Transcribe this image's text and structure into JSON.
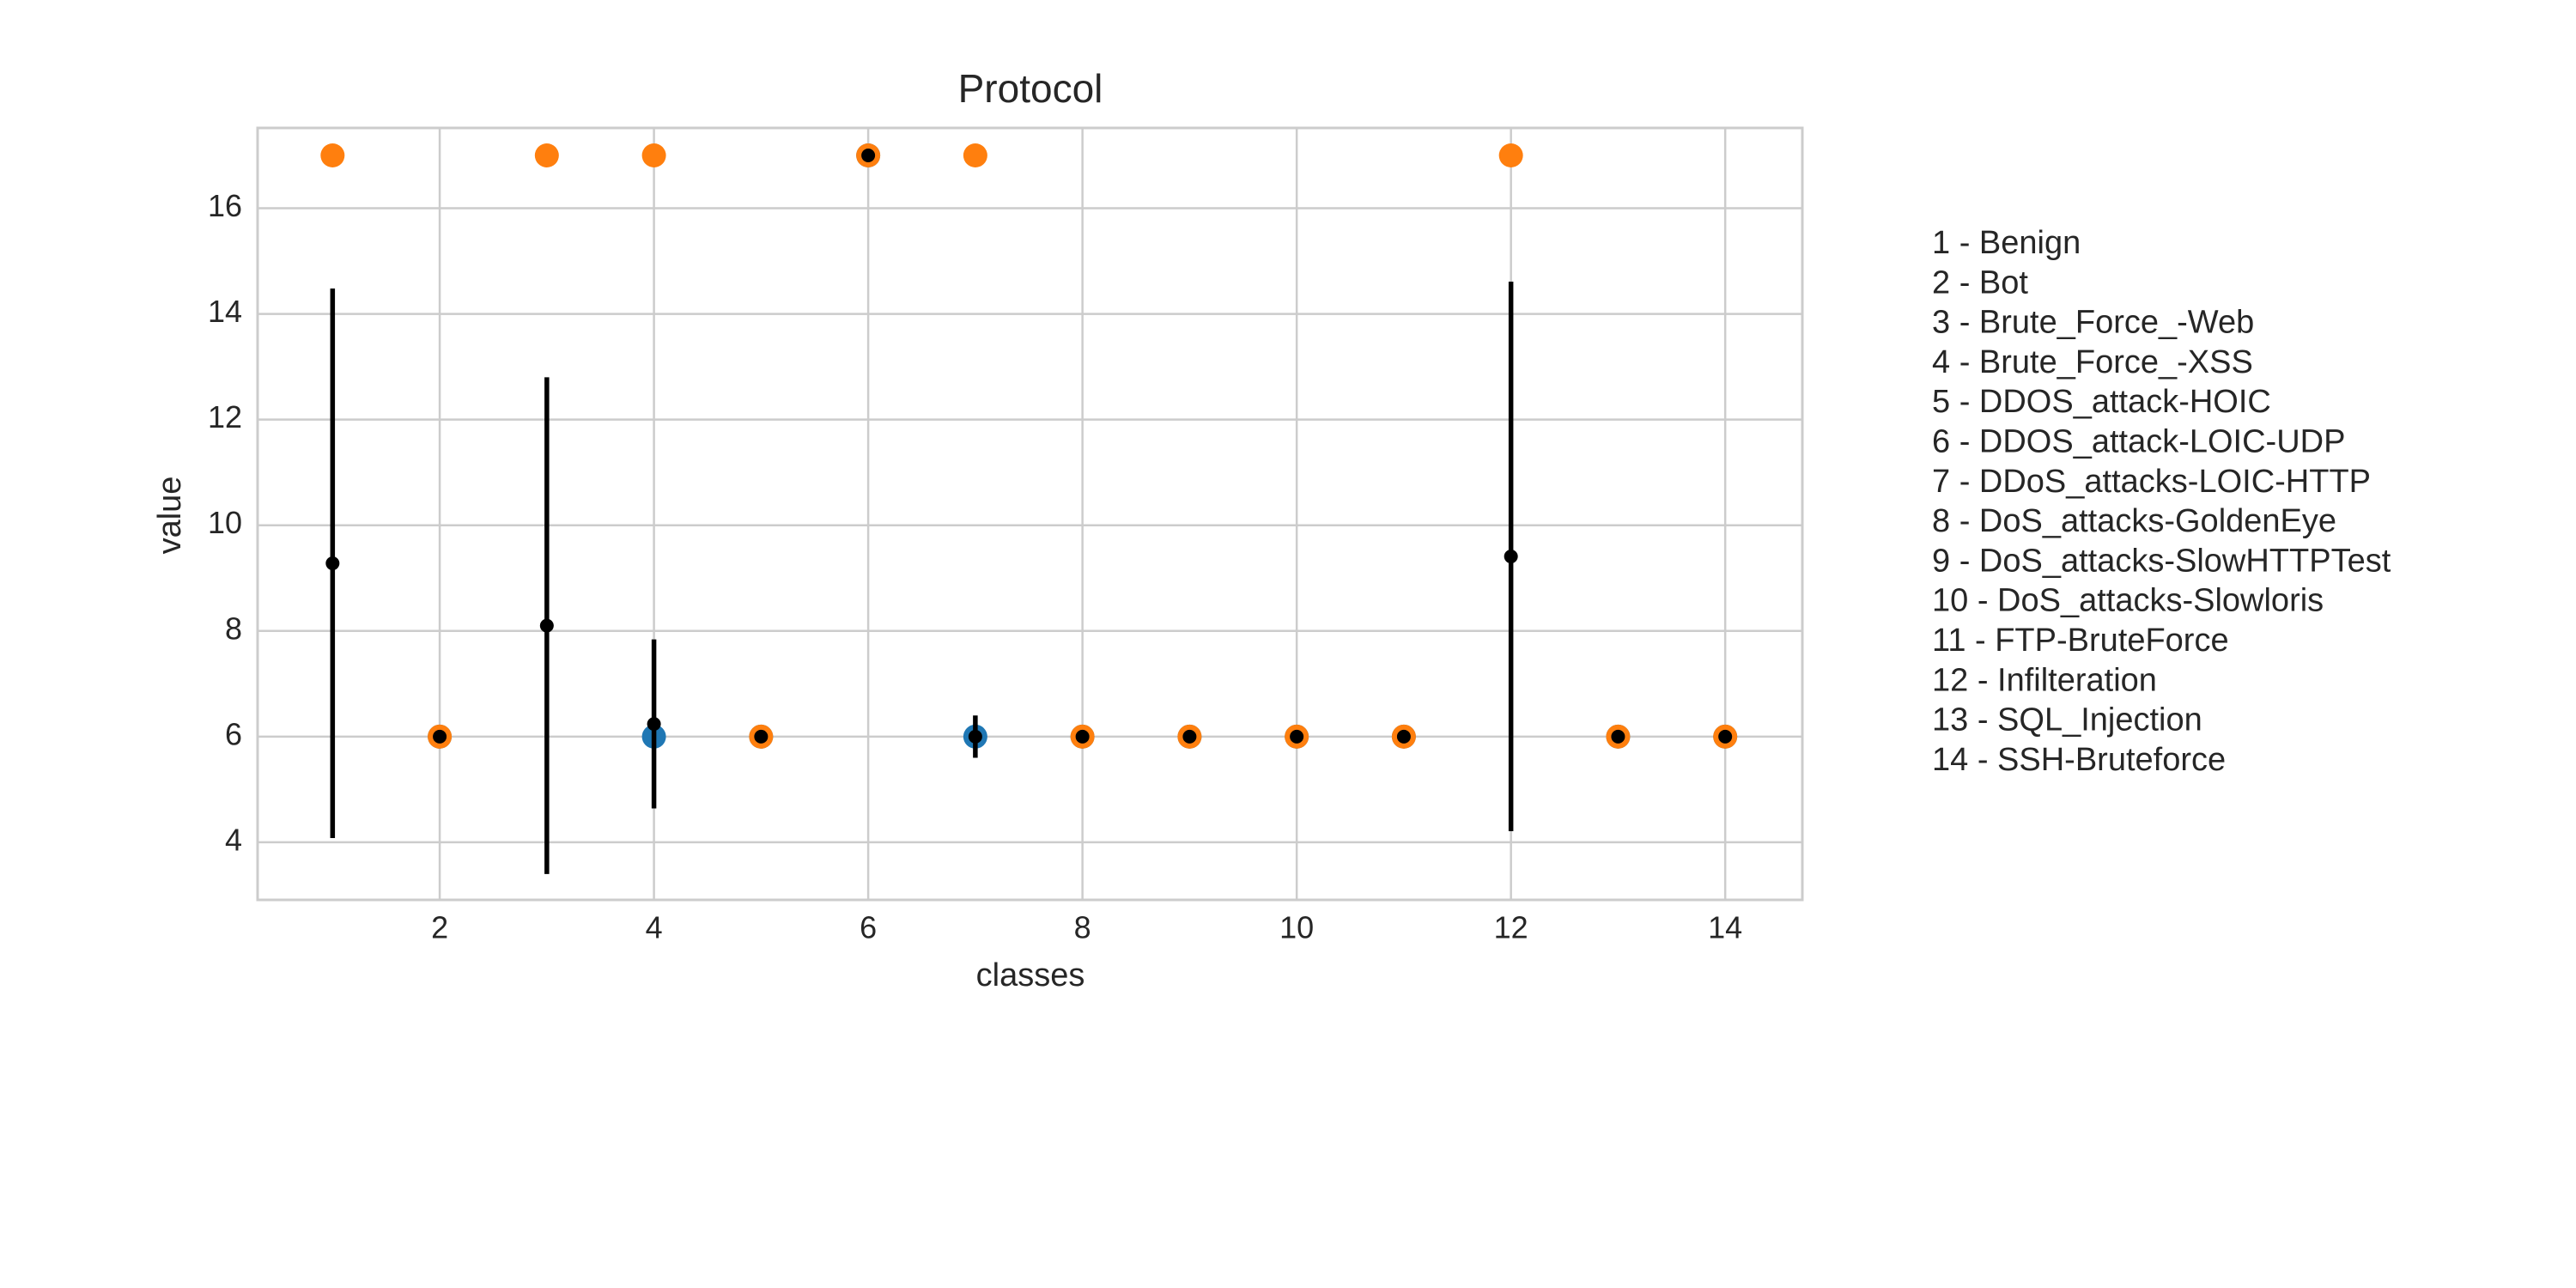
{
  "chart_data": {
    "type": "scatter",
    "title": "Protocol",
    "x_label": "classes",
    "y_label": "value",
    "x": [
      1,
      2,
      3,
      4,
      5,
      6,
      7,
      8,
      9,
      10,
      11,
      12,
      13,
      14
    ],
    "series": [
      {
        "color": "#1f77b4",
        "values": [
          null,
          6,
          null,
          6,
          6,
          17,
          6,
          6,
          6,
          6,
          6,
          null,
          6,
          6
        ]
      },
      {
        "color": "#ff7f0e",
        "values": [
          17,
          6,
          17,
          17,
          6,
          17,
          17,
          6,
          6,
          6,
          6,
          17,
          6,
          6
        ]
      },
      {
        "color": "#000000",
        "values": [
          9.28,
          6,
          8.1,
          6.24,
          6,
          17,
          6,
          6,
          6,
          6,
          6,
          9.41,
          6,
          6
        ],
        "errors": [
          5.2,
          0,
          4.7,
          1.6,
          0,
          0,
          0.4,
          0,
          0,
          0,
          0,
          5.2,
          0,
          0
        ]
      }
    ],
    "xlim": [
      0.3,
      14.72
    ],
    "ylim": [
      2.91,
      17.52
    ],
    "xticks": [
      2,
      4,
      6,
      8,
      10,
      12,
      14
    ],
    "yticks": [
      4,
      6,
      8,
      10,
      12,
      14,
      16
    ],
    "grid": true,
    "class_labels": [
      "1 - Benign",
      "2 - Bot",
      "3 - Brute_Force_-Web",
      "4 - Brute_Force_-XSS",
      "5 - DDOS_attack-HOIC",
      "6 - DDOS_attack-LOIC-UDP",
      "7 - DDoS_attacks-LOIC-HTTP",
      "8 - DoS_attacks-GoldenEye",
      "9 - DoS_attacks-SlowHTTPTest",
      "10 - DoS_attacks-Slowloris",
      "11 - FTP-BruteForce",
      "12 - Infilteration",
      "13 - SQL_Injection",
      "14 - SSH-Bruteforce"
    ]
  }
}
